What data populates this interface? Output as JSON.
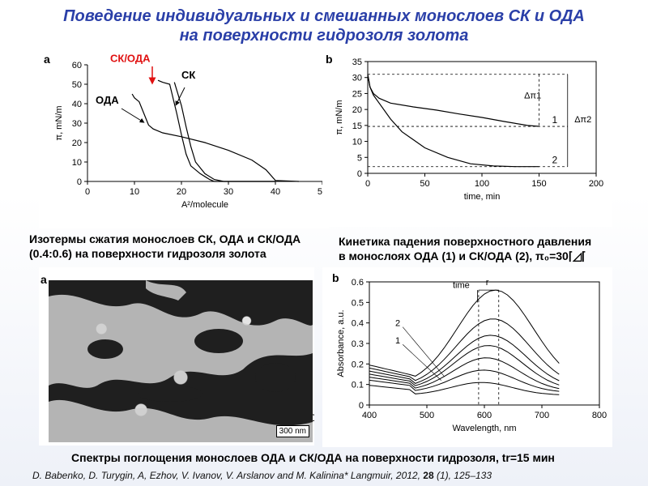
{
  "title": {
    "line1": "Поведение индивидуальных и смешанных монослоев СК и ОДА",
    "line2": "на поверхности гидрозоля золота"
  },
  "panel_labels": {
    "a": "a",
    "b": "b"
  },
  "colors": {
    "title": "#2a3fa8",
    "highlight": "#e01010"
  },
  "captions": {
    "isotherms_line1": "Изотермы сжатия монослоев СК, ОДА и СК/ОДА",
    "isotherms_line2": "(0.4:0.6) на поверхности гидрозоля золота",
    "kinetics_line1": "Кинетика падения поверхностного давления",
    "kinetics_line2": "в монослоях ОДА (1) и СК/ОДА (2), π₀=30⌈◿⌈",
    "spectra": "Спектры поглощения монослоев ОДА и СК/ОДА на поверхности гидрозоля, tr=15 мин"
  },
  "micrograph": {
    "scalebar": "300 nm",
    "overlap_tick": "0"
  },
  "citation": {
    "authors": "D. Babenko, D. Turygin, A, Ezhov, V. Ivanov, V. Arslanov and M. Kalinina* Langmuir,",
    "year": "2012,",
    "volume": "28",
    "rest": "(1), 125–133"
  },
  "chart_data": [
    {
      "type": "line",
      "panel": "a",
      "xlabel": "A²/molecule",
      "ylabel": "π, mN/m",
      "xlim": [
        0,
        50
      ],
      "ylim": [
        0,
        60
      ],
      "xticks": [
        0,
        10,
        20,
        30,
        40,
        50
      ],
      "yticks": [
        0,
        10,
        20,
        30,
        40,
        50,
        60
      ],
      "annotations": [
        "СК/ОДА",
        "СК",
        "ОДА"
      ],
      "series": [
        {
          "name": "ОДА",
          "points": [
            [
              9.5,
              45
            ],
            [
              10,
              43
            ],
            [
              11,
              41
            ],
            [
              12,
              35
            ],
            [
              13,
              29
            ],
            [
              14,
              27
            ],
            [
              16,
              25
            ],
            [
              20,
              23
            ],
            [
              25,
              20
            ],
            [
              30,
              16
            ],
            [
              35,
              11
            ],
            [
              38,
              6
            ],
            [
              40,
              0.5
            ],
            [
              45,
              0
            ]
          ]
        },
        {
          "name": "СК/ОДА",
          "points": [
            [
              15,
              52
            ],
            [
              16,
              51
            ],
            [
              17.5,
              50
            ],
            [
              18,
              45
            ],
            [
              19,
              35
            ],
            [
              20,
              24
            ],
            [
              21,
              14
            ],
            [
              22,
              8
            ],
            [
              24,
              4
            ],
            [
              26,
              1
            ],
            [
              27,
              0
            ],
            [
              40,
              0
            ]
          ]
        },
        {
          "name": "СК",
          "points": [
            [
              18.5,
              51
            ],
            [
              19,
              47
            ],
            [
              20,
              39
            ],
            [
              21,
              28
            ],
            [
              22,
              18
            ],
            [
              23,
              10
            ],
            [
              25,
              4
            ],
            [
              27,
              1
            ],
            [
              29,
              0
            ],
            [
              40,
              0
            ]
          ]
        }
      ]
    },
    {
      "type": "line",
      "panel": "b",
      "xlabel": "time, min",
      "ylabel": "π, mN/m",
      "xlim": [
        0,
        200
      ],
      "ylim": [
        0,
        35
      ],
      "xticks": [
        0,
        50,
        100,
        150,
        200
      ],
      "yticks": [
        0,
        5,
        10,
        15,
        20,
        25,
        30,
        35
      ],
      "annotations": [
        "Δπ1",
        "Δπ2"
      ],
      "series": [
        {
          "name": "1",
          "points": [
            [
              0,
              31
            ],
            [
              2,
              27
            ],
            [
              5,
              25
            ],
            [
              10,
              23.5
            ],
            [
              20,
              22
            ],
            [
              40,
              20.8
            ],
            [
              60,
              19.8
            ],
            [
              80,
              18.6
            ],
            [
              100,
              17.5
            ],
            [
              120,
              16.2
            ],
            [
              140,
              15
            ],
            [
              150,
              14.7
            ]
          ]
        },
        {
          "name": "2",
          "points": [
            [
              0,
              31
            ],
            [
              2,
              27
            ],
            [
              5,
              24.5
            ],
            [
              10,
              22
            ],
            [
              20,
              17
            ],
            [
              30,
              13
            ],
            [
              50,
              8
            ],
            [
              70,
              5
            ],
            [
              90,
              3
            ],
            [
              110,
              2.3
            ],
            [
              130,
              2.1
            ],
            [
              150,
              2.1
            ]
          ]
        }
      ]
    },
    {
      "type": "line",
      "panel": "b-spectra",
      "xlabel": "Wavelength, nm",
      "ylabel": "Absorbance, a.u.",
      "xlim": [
        400,
        800
      ],
      "ylim": [
        0,
        0.6
      ],
      "xticks": [
        400,
        500,
        600,
        700,
        800
      ],
      "yticks": [
        0,
        0.1,
        0.2,
        0.3,
        0.4,
        0.5,
        0.6
      ],
      "annotations": [
        "time",
        "r",
        "2",
        "1"
      ],
      "series": [
        {
          "name": "",
          "peak": 0.11,
          "base": 0.08
        },
        {
          "name": "",
          "peak": 0.17,
          "base": 0.1
        },
        {
          "name": "",
          "peak": 0.23,
          "base": 0.11
        },
        {
          "name": "",
          "peak": 0.29,
          "base": 0.12
        },
        {
          "name": "",
          "peak": 0.34,
          "base": 0.13
        },
        {
          "name": "",
          "peak": 0.42,
          "base": 0.14
        },
        {
          "name": "",
          "peak": 0.56,
          "base": 0.15
        }
      ]
    }
  ]
}
